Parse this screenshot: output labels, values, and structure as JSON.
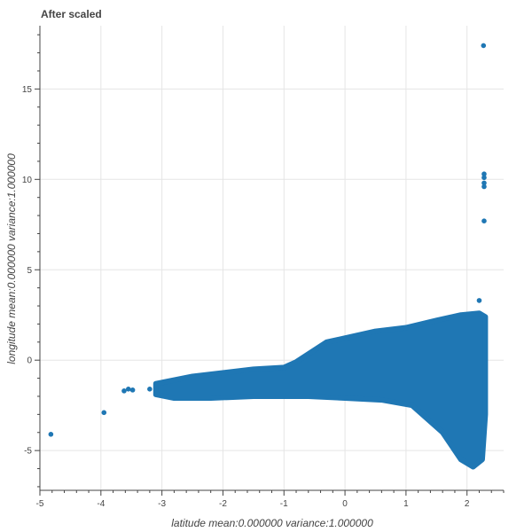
{
  "chart_data": {
    "type": "scatter",
    "title": "After scaled",
    "xlabel": "latitude  mean:0.000000  variance:1.000000",
    "ylabel": "longitude  mean:0.000000  variance:1.000000",
    "xlim": [
      -5.0,
      2.6
    ],
    "ylim": [
      -7.2,
      18.5
    ],
    "x_ticks": [
      -5,
      -4,
      -3,
      -2,
      -1,
      0,
      1,
      2
    ],
    "y_ticks": [
      -5,
      0,
      5,
      10,
      15
    ],
    "grid": true,
    "marker_color": "#1f77b4",
    "grid_color": "#e5e5e5",
    "points": [
      {
        "x": -4.82,
        "y": -4.1
      },
      {
        "x": -3.95,
        "y": -2.9
      },
      {
        "x": -3.62,
        "y": -1.7
      },
      {
        "x": -3.55,
        "y": -1.6
      },
      {
        "x": -3.48,
        "y": -1.65
      },
      {
        "x": -3.2,
        "y": -1.6
      },
      {
        "x": 2.27,
        "y": 17.4
      },
      {
        "x": 2.28,
        "y": 10.3
      },
      {
        "x": 2.28,
        "y": 10.1
      },
      {
        "x": 2.28,
        "y": 9.8
      },
      {
        "x": 2.28,
        "y": 9.6
      },
      {
        "x": 2.28,
        "y": 7.7
      },
      {
        "x": 2.2,
        "y": 3.3
      }
    ],
    "dense_region": {
      "upper_edge": [
        [
          -3.1,
          -1.3
        ],
        [
          -2.5,
          -0.9
        ],
        [
          -1.5,
          -0.5
        ],
        [
          -1.0,
          -0.4
        ],
        [
          -0.8,
          -0.1
        ],
        [
          -0.3,
          1.0
        ],
        [
          0.5,
          1.6
        ],
        [
          1.0,
          1.8
        ],
        [
          1.5,
          2.2
        ],
        [
          1.9,
          2.5
        ],
        [
          2.2,
          2.6
        ],
        [
          2.3,
          2.4
        ]
      ],
      "lower_edge": [
        [
          2.3,
          -3.0
        ],
        [
          2.25,
          -5.5
        ],
        [
          2.1,
          -5.9
        ],
        [
          1.9,
          -5.5
        ],
        [
          1.6,
          -4.0
        ],
        [
          1.1,
          -2.5
        ],
        [
          0.6,
          -2.2
        ],
        [
          0.0,
          -2.1
        ],
        [
          -0.6,
          -2.0
        ],
        [
          -1.5,
          -2.0
        ],
        [
          -2.2,
          -2.1
        ],
        [
          -2.8,
          -2.1
        ],
        [
          -3.1,
          -1.9
        ]
      ]
    }
  }
}
